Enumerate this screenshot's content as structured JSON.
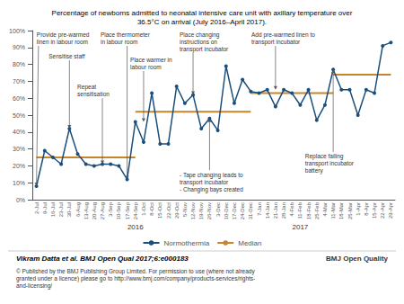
{
  "chart_data": {
    "type": "line",
    "title": "Percentage of newborns admitted to neonatal intensive care unit with axillary temperature over\n36.5°C on arrival (July 2016–April 2017).",
    "categories": [
      "2-Jul",
      "9-Jul",
      "16-Jul",
      "23-Jul",
      "30-Jul",
      "6-Aug",
      "13-Aug",
      "20-Aug",
      "27-Aug",
      "3-Sep",
      "10-Sep",
      "17-Sep",
      "24-Sep",
      "1-Oct",
      "8-Oct",
      "15-Oct",
      "22-Oct",
      "29-Oct",
      "5-Nov",
      "12-Nov",
      "19-Nov",
      "26-Nov",
      "3-Dec",
      "10-Dec",
      "17-Dec",
      "24-Dec",
      "31-Dec",
      "7-Jan",
      "14-Jan",
      "21-Jan",
      "28-Jan",
      "4-Feb",
      "11-Feb",
      "18-Feb",
      "25-Feb",
      "4-Mar",
      "11-Mar",
      "18-Mar",
      "25-Mar",
      "1-Apr",
      "8-Apr",
      "15-Apr",
      "22-Apr",
      "29-Apr"
    ],
    "series": [
      {
        "name": "Normothermia",
        "color": "#1a4e7c",
        "marker": "circle",
        "values": [
          8,
          29,
          25,
          21,
          42,
          27,
          21,
          20,
          21,
          21,
          20,
          12,
          46,
          34,
          63,
          33,
          33,
          67,
          57,
          62,
          42,
          48,
          41,
          79,
          57,
          71,
          64,
          63,
          65,
          55,
          65,
          63,
          56,
          65,
          47,
          56,
          77,
          65,
          65,
          50,
          65,
          63,
          91,
          93
        ]
      },
      {
        "name": "Median",
        "color": "#c8842a",
        "segments": [
          {
            "from": "2-Jul",
            "to": "24-Sep",
            "value": 25
          },
          {
            "from": "24-Sep",
            "to": "31-Dec",
            "value": 52
          },
          {
            "from": "31-Dec",
            "to": "11-Mar",
            "value": 63
          },
          {
            "from": "11-Mar",
            "to": "29-Apr",
            "value": 74
          }
        ]
      }
    ],
    "ylim": [
      0,
      100
    ],
    "yticks": [
      {
        "value": 0,
        "label": "0%"
      },
      {
        "value": 10,
        "label": "10%"
      },
      {
        "value": 20,
        "label": "20%"
      },
      {
        "value": 30,
        "label": "30%"
      },
      {
        "value": 40,
        "label": "40%"
      },
      {
        "value": 50,
        "label": "50%"
      },
      {
        "value": 60,
        "label": "60%"
      },
      {
        "value": 70,
        "label": "70%"
      },
      {
        "value": 80,
        "label": "80%"
      },
      {
        "value": 90,
        "label": "90%"
      },
      {
        "value": 100,
        "label": "100%"
      }
    ],
    "grid": false,
    "legend": "bottom",
    "year_labels": [
      {
        "text": "2016",
        "category": "24-Sep"
      },
      {
        "text": "2017",
        "category": "11-Feb"
      }
    ],
    "annotations": [
      {
        "text": "Sensitise staff",
        "category": "30-Jul",
        "value": 42
      },
      {
        "text": "Provide pre-warmed\nlinen in labour room",
        "category": "2-Jul",
        "value": 8
      },
      {
        "text": "Repeat\nsensitisation",
        "category": "27-Aug",
        "value": 21
      },
      {
        "text": "Place thermometer\nin labour room",
        "category": "17-Sep",
        "value": 12
      },
      {
        "text": "Place warmer in\nlabour room",
        "category": "1-Oct",
        "value": 46
      },
      {
        "text": "Place changing\ninstructions on\ntransport incubator",
        "category": "12-Nov",
        "value": 62
      },
      {
        "text": "- Tape changing leads to\ntransport incubator\n- Changing bays created",
        "category": "26-Nov",
        "value": 48
      },
      {
        "text": "Add pre-warmed linen to\ntransport incubator",
        "category": "21-Jan",
        "value": 65
      },
      {
        "text": "Replace failing\ntransport incubator\nbattery",
        "category": "11-Mar",
        "value": 77
      }
    ],
    "citation": "Vikram Datta et al. BMJ Open Qual 2017;6:e000183",
    "footer": "© Published by the BMJ Publishing Group Limited. For permission to use (where not already\ngranted under a licence) please go to http://www.bmj.com/company/products-services/rights-\nand-licensing/",
    "source_label": "BMJ Open Quality"
  }
}
